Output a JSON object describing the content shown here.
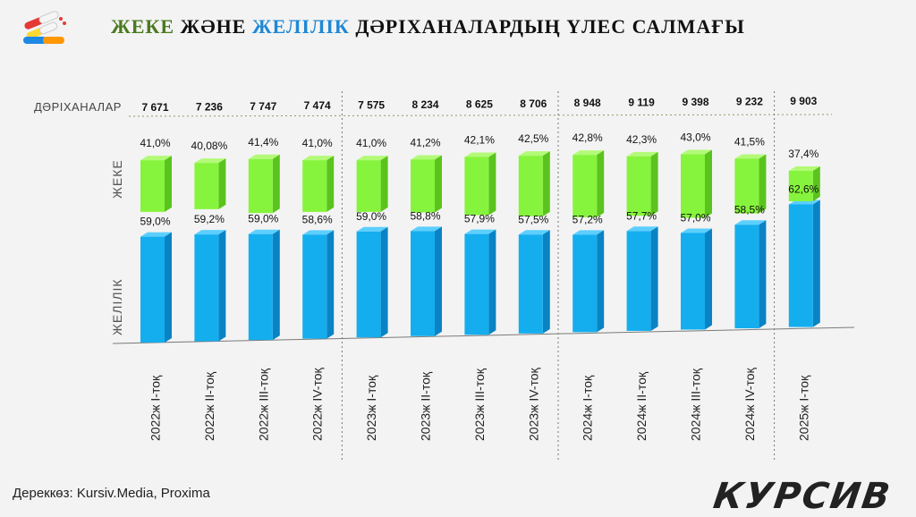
{
  "header": {
    "title_part1": "ЖЕКЕ",
    "title_part2": " ЖӘНЕ ",
    "title_part3": "ЖЕЛІЛІК",
    "title_part4": " ДӘРІХАНАЛАРДЫҢ ҮЛЕС САЛМАҒЫ",
    "logo_icon": "pills-icon"
  },
  "colors": {
    "green_face": "#86f43c",
    "green_side": "#5bc31e",
    "green_top": "#b3fa78",
    "blue_face": "#14aeee",
    "blue_side": "#0a83c4",
    "blue_top": "#5ccfff",
    "title_green": "#4a7a1e",
    "title_blue": "#1e88d6"
  },
  "chart_data": {
    "type": "bar",
    "row_labels": {
      "pharmacies": "ДӘРІХАНАЛАР",
      "private": "ЖЕКЕ",
      "chain": "ЖЕЛІЛІК"
    },
    "categories": [
      "2022ж  I-тоқ",
      "2022ж  II-тоқ",
      "2022ж  III-тоқ",
      "2022ж  IV-тоқ",
      "2023ж  I-тоқ",
      "2023ж  II-тоқ",
      "2023ж  III-тоқ",
      "2023ж  IV-тоқ",
      "2024ж  I-тоқ",
      "2024ж  II-тоқ",
      "2024ж  III-тоқ",
      "2024ж  IV-тоқ",
      "2025ж  I-тоқ"
    ],
    "pharmacy_counts": [
      "7 671",
      "7 236",
      "7 747",
      "7 474",
      "7 575",
      "8 234",
      "8 625",
      "8 706",
      "8 948",
      "9 119",
      "9 398",
      "9 232",
      "9 903"
    ],
    "series": [
      {
        "key": "private",
        "values": [
          41.0,
          40.08,
          41.4,
          41.0,
          41.0,
          41.2,
          42.1,
          42.5,
          42.8,
          42.3,
          43.0,
          41.5,
          37.4
        ],
        "labels": [
          "41,0%",
          "40,08%",
          "41,4%",
          "41,0%",
          "41,0%",
          "41,2%",
          "42,1%",
          "42,5%",
          "42,8%",
          "42,3%",
          "43,0%",
          "41,5%",
          "37,4%"
        ]
      },
      {
        "key": "chain",
        "values": [
          59.0,
          59.2,
          59.0,
          58.6,
          59.0,
          58.8,
          57.9,
          57.5,
          57.2,
          57.7,
          57.0,
          58.5,
          62.6
        ],
        "labels": [
          "59,0%",
          "59,2%",
          "59,0%",
          "58,6%",
          "59,0%",
          "58,8%",
          "57,9%",
          "57,5%",
          "57,2%",
          "57,7%",
          "57,0%",
          "58,5%",
          "62,6%"
        ]
      }
    ],
    "group_dividers_after": [
      3,
      7,
      11
    ]
  },
  "footer": {
    "source": "Дереккөз: Kursiv.Media, Proxima",
    "brand": "КУРСИВ"
  }
}
